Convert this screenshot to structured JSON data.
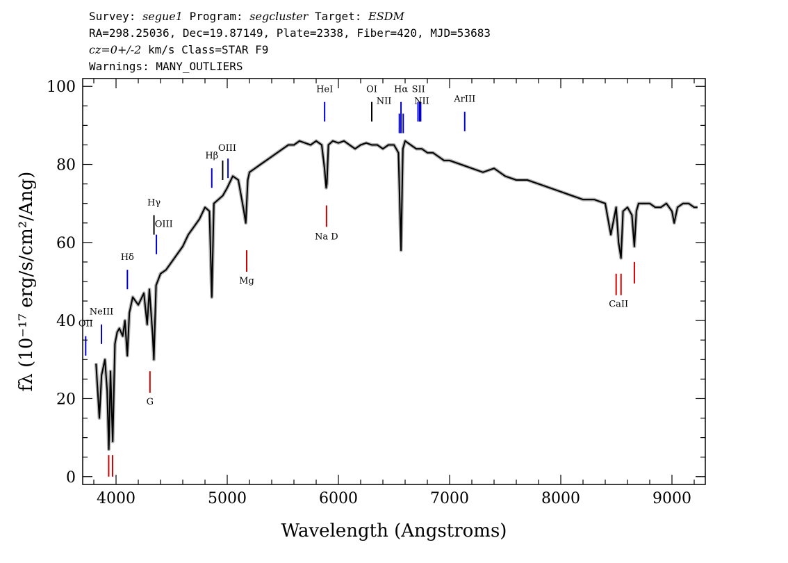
{
  "header": {
    "line1_survey_key": "Survey: ",
    "line1_survey_val": "segue1",
    "line1_program_key": " Program: ",
    "line1_program_val": "segcluster",
    "line1_target_key": " Target: ",
    "line1_target_val": "ESDM",
    "line2": "RA=298.25036, Dec=19.87149, Plate=2338, Fiber=420, MJD=53683",
    "line3_cz": "cz=0+/-2",
    "line3_rest": " km/s Class=STAR F9",
    "line4": "Warnings: MANY_OUTLIERS"
  },
  "chart_data": {
    "type": "line",
    "xlabel": "Wavelength (Angstroms)",
    "ylabel": "fλ (10⁻¹⁷ erg/s/cm²/Ang)",
    "xlim": [
      3700,
      9300
    ],
    "ylim": [
      -2,
      102
    ],
    "xticks": [
      4000,
      5000,
      6000,
      7000,
      8000,
      9000
    ],
    "yticks": [
      0,
      20,
      40,
      60,
      80,
      100
    ],
    "grid": false,
    "series": [
      {
        "color": "#000000",
        "x": [
          3820,
          3850,
          3870,
          3900,
          3920,
          3935,
          3950,
          3970,
          3990,
          4010,
          4030,
          4060,
          4080,
          4101,
          4120,
          4150,
          4200,
          4250,
          4280,
          4300,
          4330,
          4340,
          4360,
          4400,
          4450,
          4500,
          4550,
          4600,
          4650,
          4700,
          4750,
          4800,
          4840,
          4861,
          4880,
          4920,
          4960,
          5000,
          5050,
          5100,
          5150,
          5167,
          5185,
          5200,
          5250,
          5300,
          5350,
          5400,
          5450,
          5500,
          5550,
          5600,
          5650,
          5700,
          5750,
          5800,
          5850,
          5875,
          5890,
          5896,
          5910,
          5950,
          6000,
          6050,
          6100,
          6150,
          6200,
          6250,
          6300,
          6350,
          6400,
          6450,
          6500,
          6540,
          6563,
          6580,
          6600,
          6650,
          6700,
          6750,
          6800,
          6850,
          6900,
          6950,
          7000,
          7100,
          7200,
          7300,
          7400,
          7500,
          7600,
          7700,
          7800,
          7900,
          8000,
          8100,
          8200,
          8300,
          8400,
          8450,
          8498,
          8520,
          8542,
          8560,
          8600,
          8640,
          8662,
          8680,
          8700,
          8750,
          8800,
          8850,
          8900,
          8950,
          9000,
          9020,
          9050,
          9100,
          9150,
          9200,
          9230
        ],
        "y": [
          29,
          15,
          26,
          30,
          22,
          7,
          27,
          9,
          34,
          37,
          38,
          36,
          40,
          31,
          42,
          46,
          44,
          47,
          39,
          48,
          36,
          30,
          49,
          52,
          53,
          55,
          57,
          59,
          62,
          64,
          66,
          69,
          68,
          46,
          70,
          71,
          72,
          74,
          77,
          76,
          68,
          65,
          76,
          78,
          79,
          80,
          81,
          82,
          83,
          84,
          85,
          85,
          86,
          85.5,
          85,
          86,
          85,
          79,
          74,
          75,
          85,
          86,
          85.5,
          86,
          85,
          84,
          85,
          85.5,
          85,
          85,
          84,
          85,
          85,
          83,
          58,
          84,
          86,
          85,
          84,
          84,
          83,
          83,
          82,
          81,
          81,
          80,
          79,
          78,
          79,
          77,
          76,
          76,
          75,
          74,
          73,
          72,
          71,
          71,
          70,
          62,
          69,
          60,
          56,
          68,
          69,
          67,
          59,
          68,
          70,
          70,
          70,
          69,
          69,
          70,
          68,
          65,
          69,
          70,
          70,
          69,
          69
        ]
      }
    ],
    "line_markers": [
      {
        "label": "OII",
        "x": 3727,
        "y0": 31,
        "y1": 36,
        "color": "#0000cc",
        "lx": 3727,
        "ly": 38.5
      },
      {
        "label": "NeIII",
        "x": 3869,
        "y0": 34,
        "y1": 39,
        "color": "#0000cc",
        "lx": 3869,
        "ly": 41.5
      },
      {
        "label": "Hδ",
        "x": 4102,
        "y0": 48,
        "y1": 53,
        "color": "#0000cc",
        "lx": 4102,
        "ly": 55.5
      },
      {
        "label": "Hγ",
        "x": 4341,
        "y0": 62,
        "y1": 67,
        "color": "#000000",
        "lx": 4341,
        "ly": 69.5
      },
      {
        "label": "OIII",
        "x": 4363,
        "y0": 57,
        "y1": 62,
        "color": "#0000cc",
        "lx": 4430,
        "ly": 64
      },
      {
        "label": "Hβ",
        "x": 4861,
        "y0": 74,
        "y1": 79,
        "color": "#0000cc",
        "lx": 4861,
        "ly": 81.5
      },
      {
        "label": "OIII",
        "x": 4959,
        "y0": 76,
        "y1": 81,
        "color": "#000000",
        "lx": 5000,
        "ly": 83.5
      },
      {
        "label": "OIII_b",
        "x": 5007,
        "y0": 76.5,
        "y1": 81.5,
        "color": "#0000cc",
        "lx": null,
        "ly": null
      },
      {
        "label": "HeI",
        "x": 5876,
        "y0": 91,
        "y1": 96,
        "color": "#0000cc",
        "lx": 5876,
        "ly": 98.5
      },
      {
        "label": "OI",
        "x": 6300,
        "y0": 91,
        "y1": 96,
        "color": "#000000",
        "lx": 6300,
        "ly": 98.5
      },
      {
        "label": "NII",
        "x": 6548,
        "y0": 88,
        "y1": 93,
        "color": "#0000cc",
        "lx": 6410,
        "ly": 95.5
      },
      {
        "label": "Hα",
        "x": 6563,
        "y0": 88,
        "y1": 96,
        "color": "#0000cc",
        "lx": 6563,
        "ly": 98.5
      },
      {
        "label": "NII_b",
        "x": 6583,
        "y0": 88,
        "y1": 93,
        "color": "#0000cc",
        "lx": null,
        "ly": null
      },
      {
        "label": "SII",
        "x": 6716,
        "y0": 91,
        "y1": 96,
        "color": "#0000cc",
        "lx": 6720,
        "ly": 98.5
      },
      {
        "label": "SII_b",
        "x": 6731,
        "y0": 91,
        "y1": 96,
        "color": "#0000cc",
        "lx": null,
        "ly": null
      },
      {
        "label": "NII",
        "x": 6740,
        "y0": 91,
        "y1": 96,
        "color": "#0000cc",
        "lx": 6750,
        "ly": 95.5
      },
      {
        "label": "ArIII",
        "x": 7136,
        "y0": 88.5,
        "y1": 93.5,
        "color": "#0000cc",
        "lx": 7136,
        "ly": 96
      },
      {
        "label": "",
        "x": 3934,
        "y0": 0,
        "y1": 5.5,
        "color": "#cc0000",
        "lx": null,
        "ly": null
      },
      {
        "label": "",
        "x": 3969,
        "y0": 0,
        "y1": 5.5,
        "color": "#cc0000",
        "lx": null,
        "ly": null
      },
      {
        "label": "G",
        "x": 4305,
        "y0": 21.5,
        "y1": 27,
        "color": "#cc0000",
        "lx": 4305,
        "ly": 18.5
      },
      {
        "label": "Mg",
        "x": 5175,
        "y0": 52.5,
        "y1": 58,
        "color": "#cc0000",
        "lx": 5175,
        "ly": 49.5
      },
      {
        "label": "Na D",
        "x": 5893,
        "y0": 64,
        "y1": 69.5,
        "color": "#cc0000",
        "lx": 5893,
        "ly": 60.8
      },
      {
        "label": "CaII",
        "x": 8498,
        "y0": 46.5,
        "y1": 52,
        "color": "#cc0000",
        "lx": 8520,
        "ly": 43.5
      },
      {
        "label": "",
        "x": 8542,
        "y0": 46.5,
        "y1": 52,
        "color": "#cc0000",
        "lx": null,
        "ly": null
      },
      {
        "label": "",
        "x": 8662,
        "y0": 49.5,
        "y1": 55,
        "color": "#cc0000",
        "lx": null,
        "ly": null
      }
    ],
    "colors": {
      "axes": "#000000",
      "emission": "#0000cc",
      "absorption": "#cc0000",
      "error_band": "#b0b0b0"
    }
  }
}
